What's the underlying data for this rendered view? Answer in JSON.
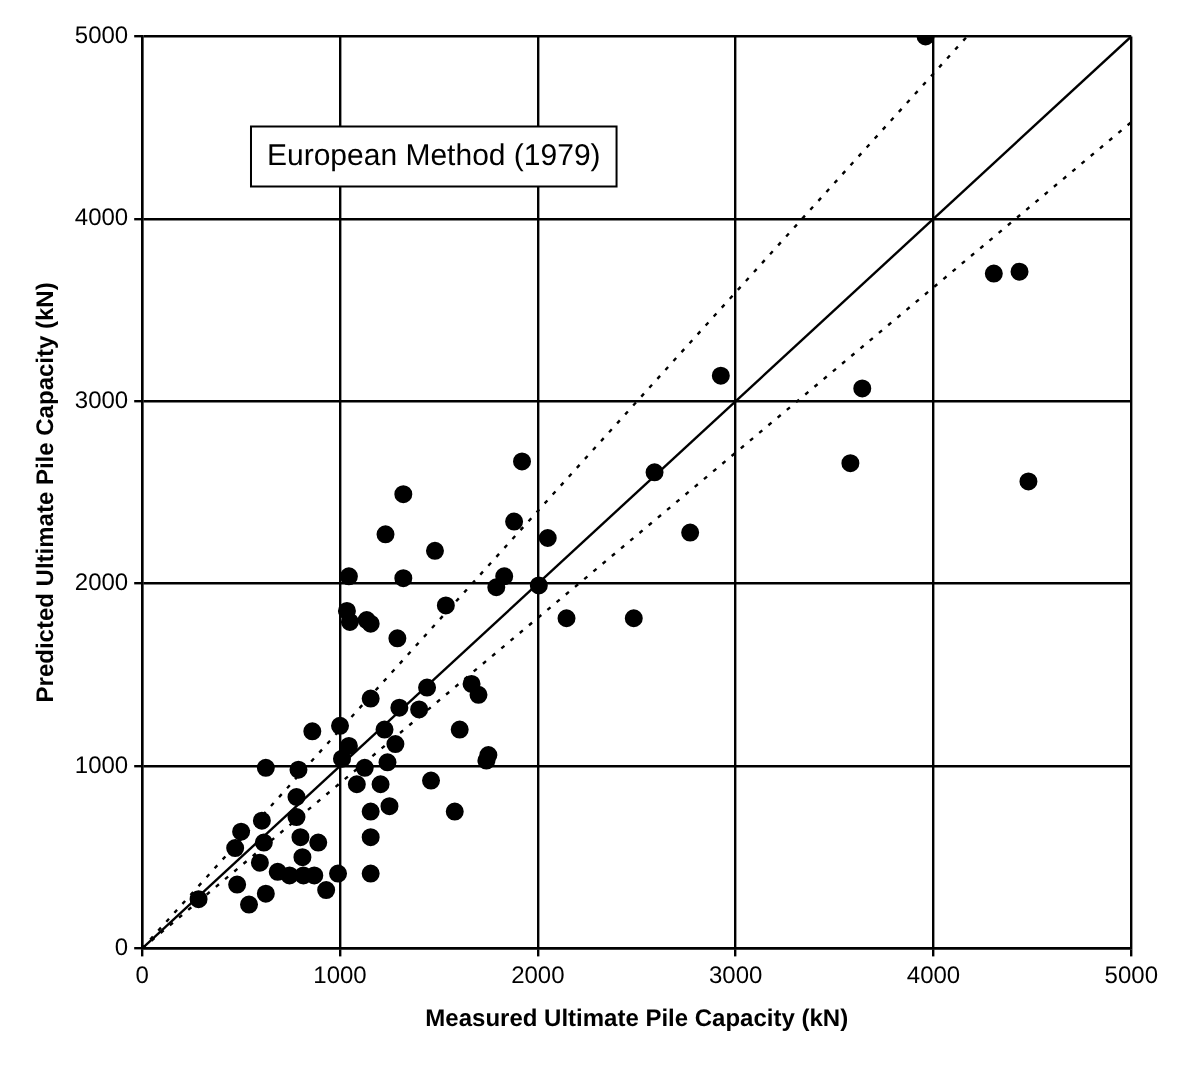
{
  "chart_data": {
    "type": "scatter",
    "xlabel": "Measured Ultimate Pile Capacity (kN)",
    "ylabel": "Predicted Ultimate Pile Capacity (kN)",
    "annotations": [
      "European Method (1979)"
    ],
    "xlim": [
      0,
      5000
    ],
    "ylim": [
      0,
      5000
    ],
    "xticks": [
      0,
      1000,
      2000,
      3000,
      4000,
      5000
    ],
    "yticks": [
      0,
      1000,
      2000,
      3000,
      4000,
      5000
    ],
    "grid": true,
    "marker": "circle",
    "series": [
      {
        "color": "#000000",
        "x": [
          3960,
          4305,
          4435,
          4480,
          3640,
          3580,
          2925,
          2770,
          2590,
          2485,
          2145,
          1920,
          1880,
          2050,
          2005,
          1830,
          1790,
          1535,
          1480,
          1320,
          1230,
          1320,
          1045,
          1035,
          1050,
          1135,
          1155,
          1290,
          1440,
          1665,
          1700,
          1155,
          1300,
          1400,
          1605,
          1000,
          1225,
          860,
          1045,
          1280,
          1750,
          1740,
          1010,
          1125,
          1240,
          625,
          790,
          1085,
          1205,
          1460,
          780,
          1250,
          605,
          780,
          1155,
          1580,
          500,
          615,
          800,
          890,
          1155,
          470,
          595,
          810,
          685,
          745,
          815,
          870,
          990,
          1155,
          480,
          930,
          625,
          540,
          285
        ],
        "values": [
          5000,
          3700,
          3710,
          2560,
          3070,
          2660,
          3140,
          2280,
          2610,
          1810,
          1810,
          2670,
          2340,
          2250,
          1990,
          2040,
          1980,
          1880,
          2180,
          2490,
          2270,
          2030,
          2040,
          1850,
          1790,
          1800,
          1780,
          1700,
          1430,
          1450,
          1390,
          1370,
          1320,
          1310,
          1200,
          1220,
          1200,
          1190,
          1110,
          1120,
          1060,
          1030,
          1040,
          990,
          1020,
          990,
          980,
          900,
          900,
          920,
          830,
          780,
          700,
          720,
          750,
          750,
          640,
          580,
          610,
          580,
          610,
          550,
          470,
          500,
          420,
          400,
          400,
          400,
          410,
          410,
          350,
          320,
          300,
          240,
          270
        ]
      },
      {
        "type": "line",
        "color": "#000000",
        "marker": "none",
        "line_style": "solid",
        "x": [
          0,
          5000
        ],
        "values": [
          0,
          5000
        ]
      },
      {
        "type": "line",
        "color": "#000000",
        "marker": "none",
        "line_style": "dotted",
        "x": [
          0,
          4170
        ],
        "values": [
          0,
          5000
        ]
      },
      {
        "type": "line",
        "color": "#000000",
        "marker": "none",
        "line_style": "dotted",
        "x": [
          0,
          5000
        ],
        "values": [
          0,
          4530
        ]
      }
    ]
  }
}
